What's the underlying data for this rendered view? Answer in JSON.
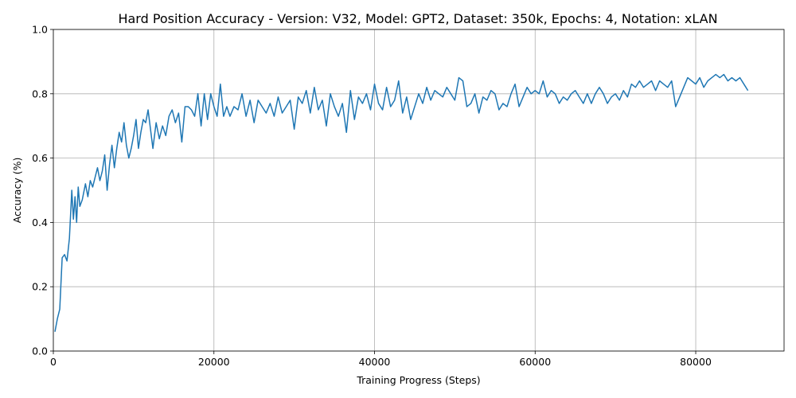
{
  "chart_data": {
    "type": "line",
    "title": "Hard Position Accuracy - Version: V32, Model: GPT2, Dataset: 350k, Epochs: 4, Notation: xLAN",
    "xlabel": "Training Progress (Steps)",
    "ylabel": "Accuracy (%)",
    "xlim": [
      0,
      91000
    ],
    "ylim": [
      0,
      1.0
    ],
    "xticks": [
      0,
      20000,
      40000,
      60000,
      80000
    ],
    "xtick_labels": [
      "0",
      "20000",
      "40000",
      "60000",
      "80000"
    ],
    "yticks": [
      0,
      0.2,
      0.4,
      0.6,
      0.8,
      1.0
    ],
    "ytick_labels": [
      "0.0",
      "0.2",
      "0.4",
      "0.6",
      "0.8",
      "1.0"
    ],
    "grid": true,
    "line_color": "#1f77b4",
    "series": [
      {
        "x": [
          200,
          500,
          800,
          1100,
          1400,
          1700,
          2000,
          2300,
          2500,
          2700,
          2900,
          3100,
          3300,
          3600,
          4000,
          4300,
          4600,
          4900,
          5200,
          5500,
          5800,
          6100,
          6400,
          6700,
          7000,
          7300,
          7600,
          7900,
          8200,
          8500,
          8800,
          9100,
          9400,
          9700,
          10000,
          10300,
          10600,
          10900,
          11200,
          11500,
          11800,
          12100,
          12400,
          12800,
          13200,
          13600,
          14000,
          14400,
          14800,
          15200,
          15600,
          16000,
          16400,
          16800,
          17200,
          17600,
          18000,
          18400,
          18800,
          19200,
          19600,
          20000,
          20400,
          20800,
          21200,
          21600,
          22000,
          22500,
          23000,
          23500,
          24000,
          24500,
          25000,
          25500,
          26000,
          26500,
          27000,
          27500,
          28000,
          28500,
          29000,
          29500,
          30000,
          30500,
          31000,
          31500,
          32000,
          32500,
          33000,
          33500,
          34000,
          34500,
          35000,
          35500,
          36000,
          36500,
          37000,
          37500,
          38000,
          38500,
          39000,
          39500,
          40000,
          40500,
          41000,
          41500,
          42000,
          42500,
          43000,
          43500,
          44000,
          44500,
          45000,
          45500,
          46000,
          46500,
          47000,
          47500,
          48000,
          48500,
          49000,
          49500,
          50000,
          50500,
          51000,
          51500,
          52000,
          52500,
          53000,
          53500,
          54000,
          54500,
          55000,
          55500,
          56000,
          56500,
          57000,
          57500,
          58000,
          58500,
          59000,
          59500,
          60000,
          60500,
          61000,
          61500,
          62000,
          62500,
          63000,
          63500,
          64000,
          64500,
          65000,
          65500,
          66000,
          66500,
          67000,
          67500,
          68000,
          68500,
          69000,
          69500,
          70000,
          70500,
          71000,
          71500,
          72000,
          72500,
          73000,
          73500,
          74000,
          74500,
          75000,
          75500,
          76000,
          76500,
          77000,
          77500,
          78000,
          78500,
          79000,
          79500,
          80000,
          80500,
          81000,
          81500,
          82000,
          82500,
          83000,
          83500,
          84000,
          84500,
          85000,
          85500,
          86000,
          86500
        ],
        "y": [
          0.06,
          0.1,
          0.13,
          0.29,
          0.3,
          0.28,
          0.35,
          0.5,
          0.41,
          0.48,
          0.4,
          0.51,
          0.45,
          0.47,
          0.52,
          0.48,
          0.53,
          0.51,
          0.54,
          0.57,
          0.53,
          0.56,
          0.61,
          0.5,
          0.58,
          0.64,
          0.57,
          0.63,
          0.68,
          0.65,
          0.71,
          0.64,
          0.6,
          0.63,
          0.67,
          0.72,
          0.63,
          0.68,
          0.72,
          0.71,
          0.75,
          0.69,
          0.63,
          0.71,
          0.66,
          0.7,
          0.67,
          0.73,
          0.75,
          0.71,
          0.74,
          0.65,
          0.76,
          0.76,
          0.75,
          0.73,
          0.8,
          0.7,
          0.8,
          0.72,
          0.8,
          0.76,
          0.73,
          0.83,
          0.73,
          0.76,
          0.73,
          0.76,
          0.75,
          0.8,
          0.73,
          0.78,
          0.71,
          0.78,
          0.76,
          0.74,
          0.77,
          0.73,
          0.79,
          0.74,
          0.76,
          0.78,
          0.69,
          0.79,
          0.77,
          0.81,
          0.74,
          0.82,
          0.75,
          0.78,
          0.7,
          0.8,
          0.76,
          0.73,
          0.77,
          0.68,
          0.81,
          0.72,
          0.79,
          0.77,
          0.8,
          0.75,
          0.83,
          0.77,
          0.75,
          0.82,
          0.76,
          0.78,
          0.84,
          0.74,
          0.79,
          0.72,
          0.76,
          0.8,
          0.77,
          0.82,
          0.78,
          0.81,
          0.8,
          0.79,
          0.82,
          0.8,
          0.78,
          0.85,
          0.84,
          0.76,
          0.77,
          0.8,
          0.74,
          0.79,
          0.78,
          0.81,
          0.8,
          0.75,
          0.77,
          0.76,
          0.8,
          0.83,
          0.76,
          0.79,
          0.82,
          0.8,
          0.81,
          0.8,
          0.84,
          0.79,
          0.81,
          0.8,
          0.77,
          0.79,
          0.78,
          0.8,
          0.81,
          0.79,
          0.77,
          0.8,
          0.77,
          0.8,
          0.82,
          0.8,
          0.77,
          0.79,
          0.8,
          0.78,
          0.81,
          0.79,
          0.83,
          0.82,
          0.84,
          0.82,
          0.83,
          0.84,
          0.81,
          0.84,
          0.83,
          0.82,
          0.84,
          0.76,
          0.79,
          0.82,
          0.85,
          0.84,
          0.83,
          0.85,
          0.82,
          0.84,
          0.85,
          0.86,
          0.85,
          0.86,
          0.84,
          0.85,
          0.84,
          0.85,
          0.83,
          0.81
        ]
      }
    ]
  }
}
